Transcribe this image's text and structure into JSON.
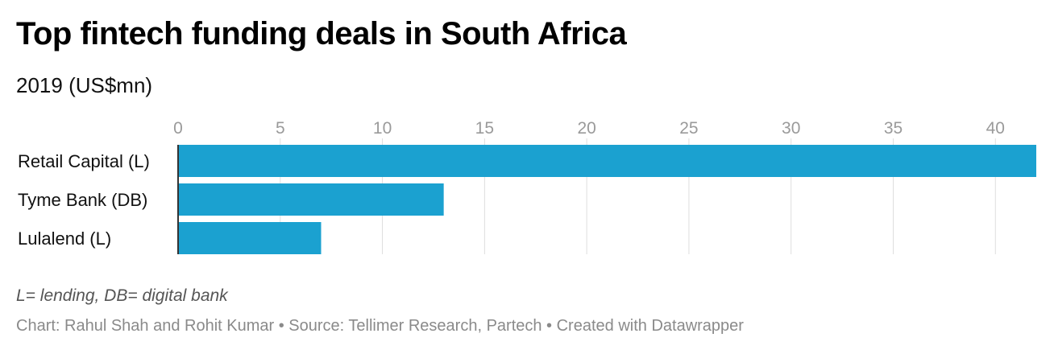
{
  "header": {
    "title": "Top fintech funding deals in South Africa",
    "subtitle": "2019 (US$mn)"
  },
  "chart_data": {
    "type": "bar",
    "orientation": "horizontal",
    "categories": [
      "Retail Capital (L)",
      "Tyme Bank (DB)",
      "Lulalend (L)"
    ],
    "values": [
      42,
      13,
      7
    ],
    "xlim": [
      0,
      42
    ],
    "xticks": [
      0,
      5,
      10,
      15,
      20,
      25,
      30,
      35,
      40
    ],
    "grid": true,
    "bar_color": "#1ba1d0"
  },
  "footer": {
    "note": "L= lending, DB= digital bank",
    "source": "Chart: Rahul Shah and Rohit Kumar • Source: Tellimer Research, Partech • Created with Datawrapper"
  }
}
